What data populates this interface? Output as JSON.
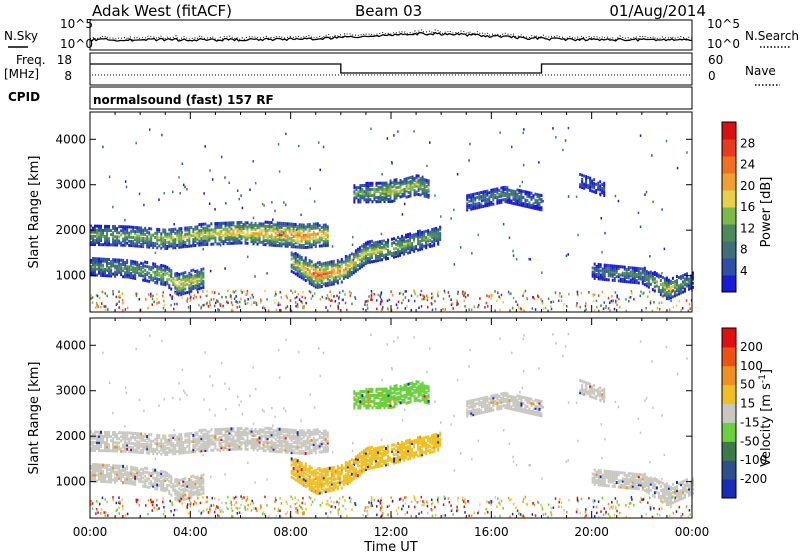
{
  "header": {
    "station": "Adak West (fitACF)",
    "beam": "Beam 03",
    "date": "01/Aug/2014"
  },
  "status_panels": {
    "noise": {
      "left_label": "N.Sky",
      "right_label": "N.Search",
      "left_ticks": [
        "10^5",
        "10^0"
      ],
      "right_ticks": [
        "10^5",
        "10^0"
      ]
    },
    "frequency": {
      "left_label_line1": "Freq.",
      "left_label_line2": "[MHz]",
      "right_label": "Nave",
      "left_ticks": [
        "18",
        "8"
      ],
      "right_ticks": [
        "60",
        "0"
      ],
      "steps": [
        {
          "start_hour": 0,
          "end_hour": 10,
          "freq_level": "high"
        },
        {
          "start_hour": 10,
          "end_hour": 18,
          "freq_level": "low"
        },
        {
          "start_hour": 18,
          "end_hour": 24,
          "freq_level": "high"
        }
      ]
    },
    "cpid": {
      "label": "CPID",
      "value": "normalsound (fast) 157 RF"
    }
  },
  "chart_data": [
    {
      "type": "heatmap",
      "title": "",
      "xlabel": "",
      "ylabel": "Slant Range [km]",
      "xlim": [
        0,
        24
      ],
      "ylim": [
        200,
        4600
      ],
      "x_ticks": [
        "00:00",
        "04:00",
        "08:00",
        "12:00",
        "16:00",
        "20:00",
        "00:00"
      ],
      "y_ticks": [
        "1000",
        "2000",
        "3000",
        "4000"
      ],
      "colorbar": {
        "label": "Power [dB]",
        "ticks": [
          "28",
          "24",
          "20",
          "16",
          "12",
          "8",
          "4"
        ],
        "colors": [
          "#1a1ad6",
          "#2e4fa8",
          "#3f6f7a",
          "#4c8a5a",
          "#7cb84a",
          "#e8d04a",
          "#f0a030",
          "#f07020",
          "#e83a1c",
          "#d81010"
        ]
      },
      "echo_regions": [
        {
          "name": "band-a",
          "points": [
            [
              0,
              1880,
              14
            ],
            [
              1.5,
              1860,
              14
            ],
            [
              3,
              1800,
              16
            ],
            [
              4.5,
              1900,
              18
            ],
            [
              6,
              1950,
              20
            ],
            [
              7.5,
              1900,
              22
            ],
            [
              8.5,
              1870,
              24
            ],
            [
              9.5,
              1900,
              20
            ]
          ]
        },
        {
          "name": "band-b",
          "points": [
            [
              0,
              1200,
              12
            ],
            [
              1.5,
              1150,
              12
            ],
            [
              3,
              1000,
              16
            ],
            [
              3.5,
              800,
              20
            ],
            [
              4.5,
              950,
              16
            ]
          ]
        },
        {
          "name": "band-c",
          "points": [
            [
              8,
              1300,
              16
            ],
            [
              9,
              1000,
              26
            ],
            [
              10,
              1100,
              22
            ],
            [
              11,
              1500,
              18
            ],
            [
              12,
              1600,
              16
            ],
            [
              13,
              1750,
              14
            ],
            [
              14,
              1900,
              12
            ]
          ]
        },
        {
          "name": "band-d",
          "points": [
            [
              10.5,
              2800,
              12
            ],
            [
              12,
              2850,
              18
            ],
            [
              13,
              3000,
              16
            ],
            [
              13.5,
              2900,
              12
            ]
          ]
        },
        {
          "name": "band-e",
          "points": [
            [
              15,
              2600,
              8
            ],
            [
              16.5,
              2800,
              10
            ],
            [
              18,
              2600,
              8
            ]
          ]
        },
        {
          "name": "band-f",
          "points": [
            [
              19.5,
              3100,
              6
            ],
            [
              20.5,
              2900,
              6
            ]
          ]
        },
        {
          "name": "band-g",
          "points": [
            [
              20,
              1100,
              8
            ],
            [
              22,
              1000,
              10
            ],
            [
              23,
              700,
              18
            ],
            [
              24,
              900,
              8
            ]
          ]
        }
      ]
    },
    {
      "type": "heatmap",
      "title": "",
      "xlabel": "Time UT",
      "ylabel": "Slant Range [km]",
      "xlim": [
        0,
        24
      ],
      "ylim": [
        200,
        4600
      ],
      "x_ticks": [
        "00:00",
        "04:00",
        "08:00",
        "12:00",
        "16:00",
        "20:00",
        "00:00"
      ],
      "y_ticks": [
        "1000",
        "2000",
        "3000",
        "4000"
      ],
      "colorbar": {
        "label": "Velocity [m s^-1]",
        "ticks": [
          "200",
          "100",
          "50",
          "15",
          "-15",
          "-50",
          "-100",
          "-200"
        ],
        "colors": [
          "#1a2ab8",
          "#2e4f8c",
          "#3c7a4a",
          "#6ad040",
          "#c8c8c0",
          "#f0c020",
          "#f09020",
          "#f05010",
          "#e01010"
        ]
      },
      "echo_regions": [
        {
          "name": "ground-a",
          "velocity": 0
        },
        {
          "name": "ionos-b",
          "velocity": -20
        },
        {
          "name": "ionos-c",
          "velocity": 40
        }
      ]
    }
  ]
}
